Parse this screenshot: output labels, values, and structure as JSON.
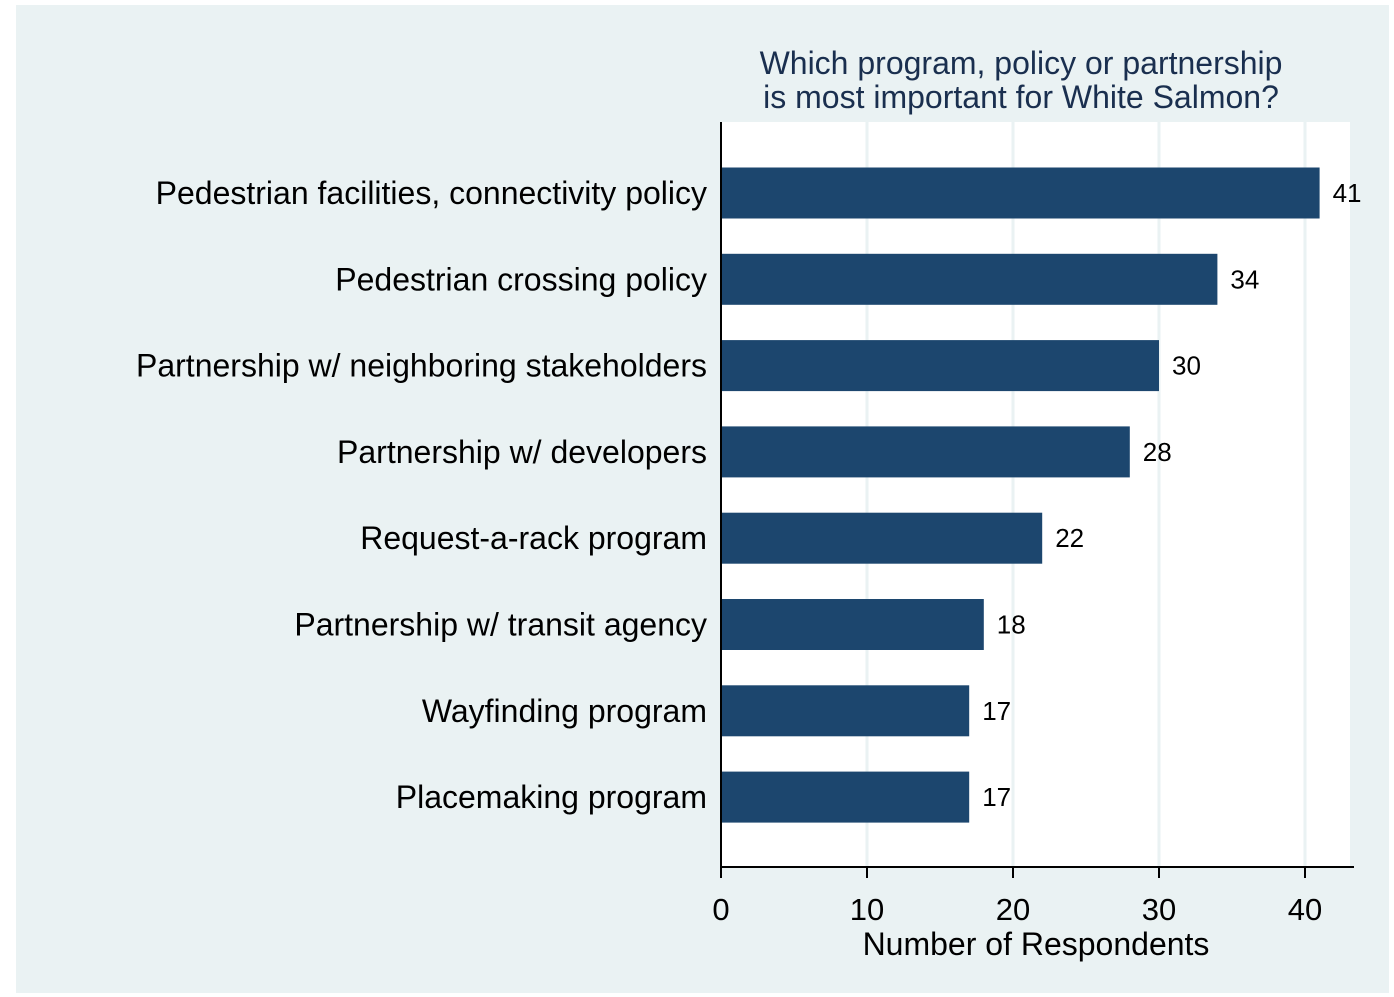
{
  "chart_data": {
    "type": "bar",
    "orientation": "horizontal",
    "title": [
      "Which program, policy or partnership",
      "is most important for White Salmon?"
    ],
    "xlabel": "Number of Respondents",
    "ylabel": "",
    "categories": [
      "Pedestrian facilities, connectivity policy",
      "Pedestrian crossing policy",
      "Partnership w/ neighboring stakeholders",
      "Partnership w/ developers",
      "Request-a-rack program",
      "Partnership w/ transit agency",
      "Wayfinding program",
      "Placemaking program"
    ],
    "values": [
      41,
      34,
      30,
      28,
      22,
      18,
      17,
      17
    ],
    "data_labels": [
      "41",
      "34",
      "30",
      "28",
      "22",
      "18",
      "17",
      "17"
    ],
    "xlim": [
      0,
      43.5
    ],
    "xticks": [
      0,
      10,
      20,
      30,
      40
    ],
    "xtick_labels": [
      "0",
      "10",
      "20",
      "30",
      "40"
    ],
    "grid": true,
    "colors": {
      "bar": "#1c466e",
      "background": "#eaf2f3",
      "plot_background": "#ffffff",
      "gridline": "#eaf2f3",
      "title": "#1a2f4f"
    }
  }
}
